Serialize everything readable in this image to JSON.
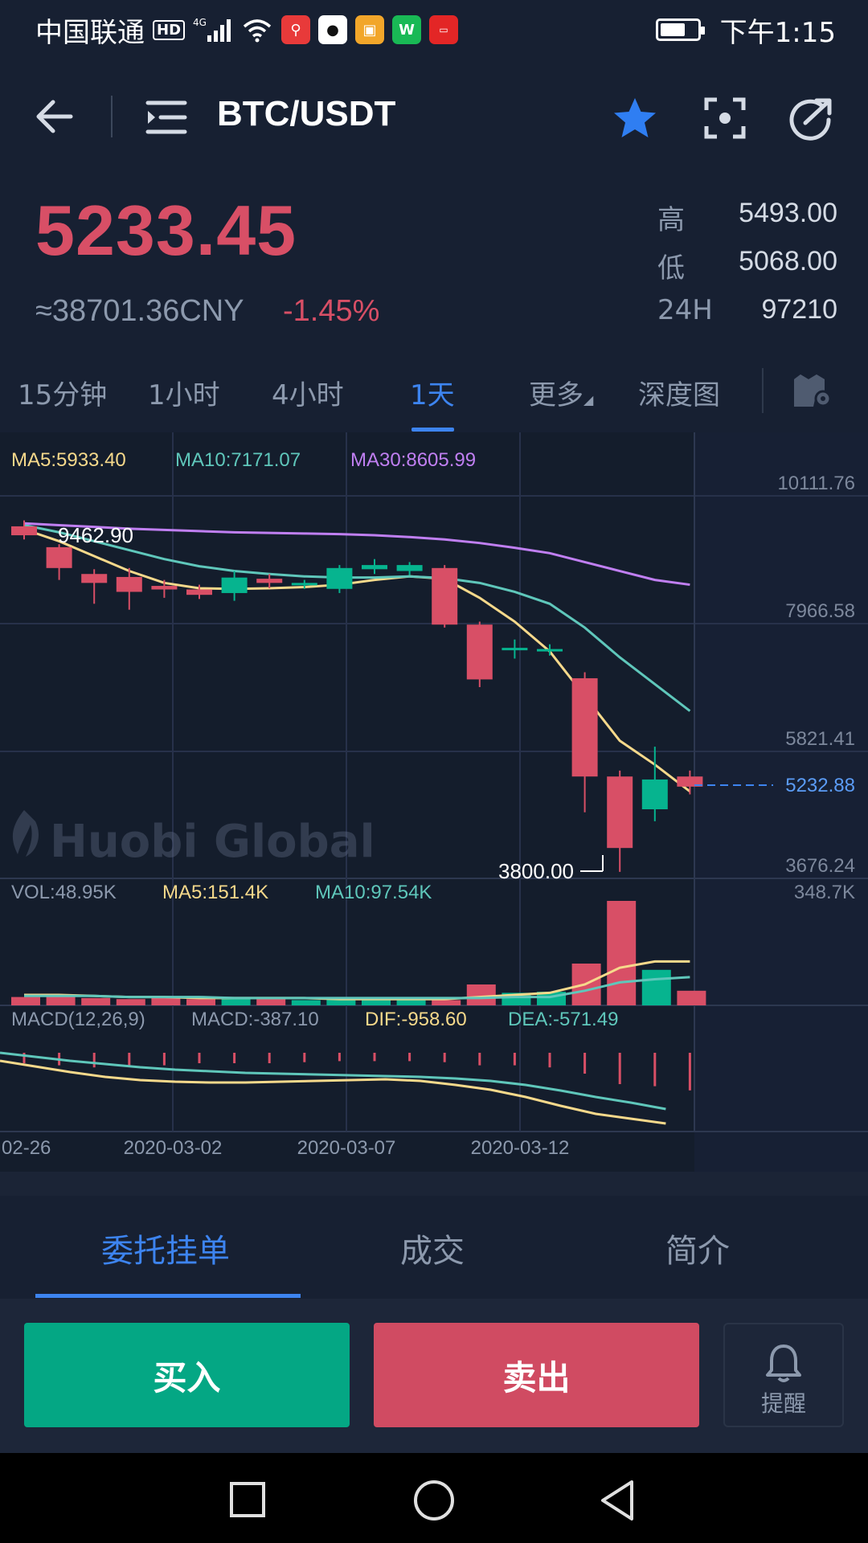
{
  "status_bar": {
    "carrier": "中国联通",
    "hd": "HD",
    "network": "4G",
    "time": "下午1:15"
  },
  "header": {
    "pair": "BTC/USDT",
    "icons": [
      "back-arrow-icon",
      "menu-list-icon",
      "star-icon",
      "scan-icon",
      "share-icon"
    ],
    "star_color": "#2f7ef2"
  },
  "ticker": {
    "price": "5233.45",
    "cny": "≈38701.36CNY",
    "change": "-1.45%",
    "stats": [
      {
        "label": "高",
        "value": "5493.00"
      },
      {
        "label": "低",
        "value": "5068.00"
      },
      {
        "label": "24H",
        "value": "97210"
      }
    ]
  },
  "period_tabs": [
    {
      "label": "15分钟",
      "active": false
    },
    {
      "label": "1小时",
      "active": false
    },
    {
      "label": "4小时",
      "active": false
    },
    {
      "label": "1天",
      "active": true
    },
    {
      "label": "更多",
      "active": false
    },
    {
      "label": "深度图",
      "active": false
    }
  ],
  "chart": {
    "ma_labels": {
      "ma5": "MA5:5933.40",
      "ma10": "MA10:7171.07",
      "ma30": "MA30:8605.99"
    },
    "price_axis": [
      "10111.76",
      "7966.58",
      "5821.41",
      "3676.24"
    ],
    "current_price_label": "5232.88",
    "high_annotation": "9462.90",
    "low_annotation": "3800.00",
    "watermark": "Huobi Global",
    "vol_labels": {
      "vol": "VOL:48.95K",
      "ma5": "MA5:151.4K",
      "ma10": "MA10:97.54K"
    },
    "vol_axis": "348.7K",
    "macd_labels": {
      "title": "MACD(12,26,9)",
      "macd": "MACD:-387.10",
      "dif": "DIF:-958.60",
      "dea": "DEA:-571.49"
    },
    "date_axis": [
      "02-26",
      "2020-03-02",
      "2020-03-07",
      "2020-03-12"
    ],
    "colors": {
      "up": "#06b48f",
      "down": "#d84f66",
      "ma5": "#f6d98b",
      "ma10": "#5fc7bb",
      "ma30": "#c07ff2"
    }
  },
  "bottom_tabs": [
    {
      "label": "委托挂单",
      "active": true
    },
    {
      "label": "成交",
      "active": false
    },
    {
      "label": "简介",
      "active": false
    }
  ],
  "actions": {
    "buy": "买入",
    "sell": "卖出",
    "alert": "提醒"
  }
}
